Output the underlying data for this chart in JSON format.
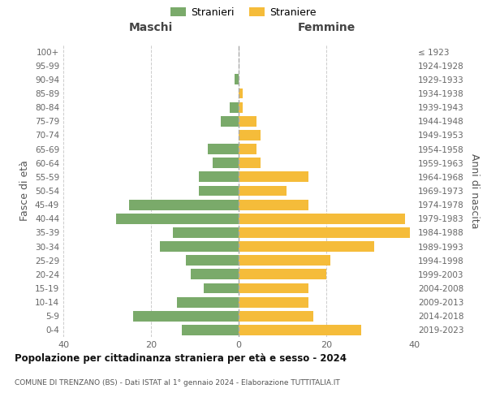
{
  "age_groups": [
    "0-4",
    "5-9",
    "10-14",
    "15-19",
    "20-24",
    "25-29",
    "30-34",
    "35-39",
    "40-44",
    "45-49",
    "50-54",
    "55-59",
    "60-64",
    "65-69",
    "70-74",
    "75-79",
    "80-84",
    "85-89",
    "90-94",
    "95-99",
    "100+"
  ],
  "birth_years": [
    "2019-2023",
    "2014-2018",
    "2009-2013",
    "2004-2008",
    "1999-2003",
    "1994-1998",
    "1989-1993",
    "1984-1988",
    "1979-1983",
    "1974-1978",
    "1969-1973",
    "1964-1968",
    "1959-1963",
    "1954-1958",
    "1949-1953",
    "1944-1948",
    "1939-1943",
    "1934-1938",
    "1929-1933",
    "1924-1928",
    "≤ 1923"
  ],
  "maschi": [
    13,
    24,
    14,
    8,
    11,
    12,
    18,
    15,
    28,
    25,
    9,
    9,
    6,
    7,
    0,
    4,
    2,
    0,
    1,
    0,
    0
  ],
  "femmine": [
    28,
    17,
    16,
    16,
    20,
    21,
    31,
    39,
    38,
    16,
    11,
    16,
    5,
    4,
    5,
    4,
    1,
    1,
    0,
    0,
    0
  ],
  "color_maschi": "#7aaa6a",
  "color_femmine": "#f5bc3a",
  "title": "Popolazione per cittadinanza straniera per età e sesso - 2024",
  "subtitle": "COMUNE DI TRENZANO (BS) - Dati ISTAT al 1° gennaio 2024 - Elaborazione TUTTITALIA.IT",
  "xlabel_left": "Maschi",
  "xlabel_right": "Femmine",
  "ylabel_left": "Fasce di età",
  "ylabel_right": "Anni di nascita",
  "legend_stranieri": "Stranieri",
  "legend_straniere": "Straniere",
  "xlim": 40,
  "bg_color": "#ffffff",
  "grid_color": "#cccccc"
}
